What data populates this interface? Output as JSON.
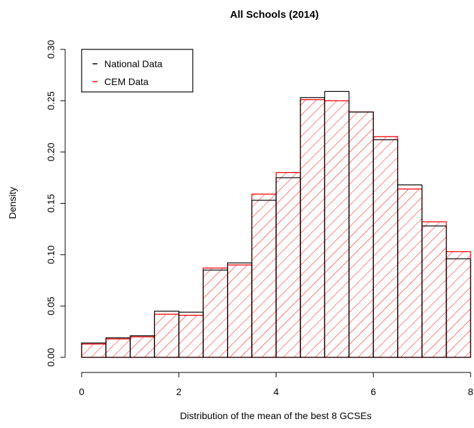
{
  "chart_data": {
    "type": "bar",
    "title": "All Schools (2014)",
    "xlabel": "Distribution of the mean of the best 8 GCSEs",
    "ylabel": "Density",
    "xlim": [
      0,
      8
    ],
    "ylim": [
      0,
      0.3
    ],
    "x_ticks": [
      "0",
      "2",
      "4",
      "6",
      "8"
    ],
    "y_ticks": [
      "0.00",
      "0.05",
      "0.10",
      "0.15",
      "0.20",
      "0.25",
      "0.30"
    ],
    "bin_edges": [
      0,
      0.5,
      1,
      1.5,
      2,
      2.5,
      3,
      3.5,
      4,
      4.5,
      5,
      5.5,
      6,
      6.5,
      7,
      7.5,
      8
    ],
    "legend": {
      "position": "top-left",
      "entries": [
        "National Data",
        "CEM Data"
      ]
    },
    "series": [
      {
        "name": "National Data",
        "color": "#000000",
        "values": [
          0.014,
          0.019,
          0.021,
          0.045,
          0.044,
          0.085,
          0.092,
          0.153,
          0.175,
          0.253,
          0.259,
          0.239,
          0.212,
          0.168,
          0.128,
          0.096
        ]
      },
      {
        "name": "CEM Data",
        "color": "#ff0000",
        "hatch": "diagonal",
        "values": [
          0.013,
          0.018,
          0.02,
          0.042,
          0.041,
          0.087,
          0.09,
          0.159,
          0.18,
          0.251,
          0.25,
          0.239,
          0.215,
          0.164,
          0.132,
          0.103
        ]
      }
    ]
  }
}
